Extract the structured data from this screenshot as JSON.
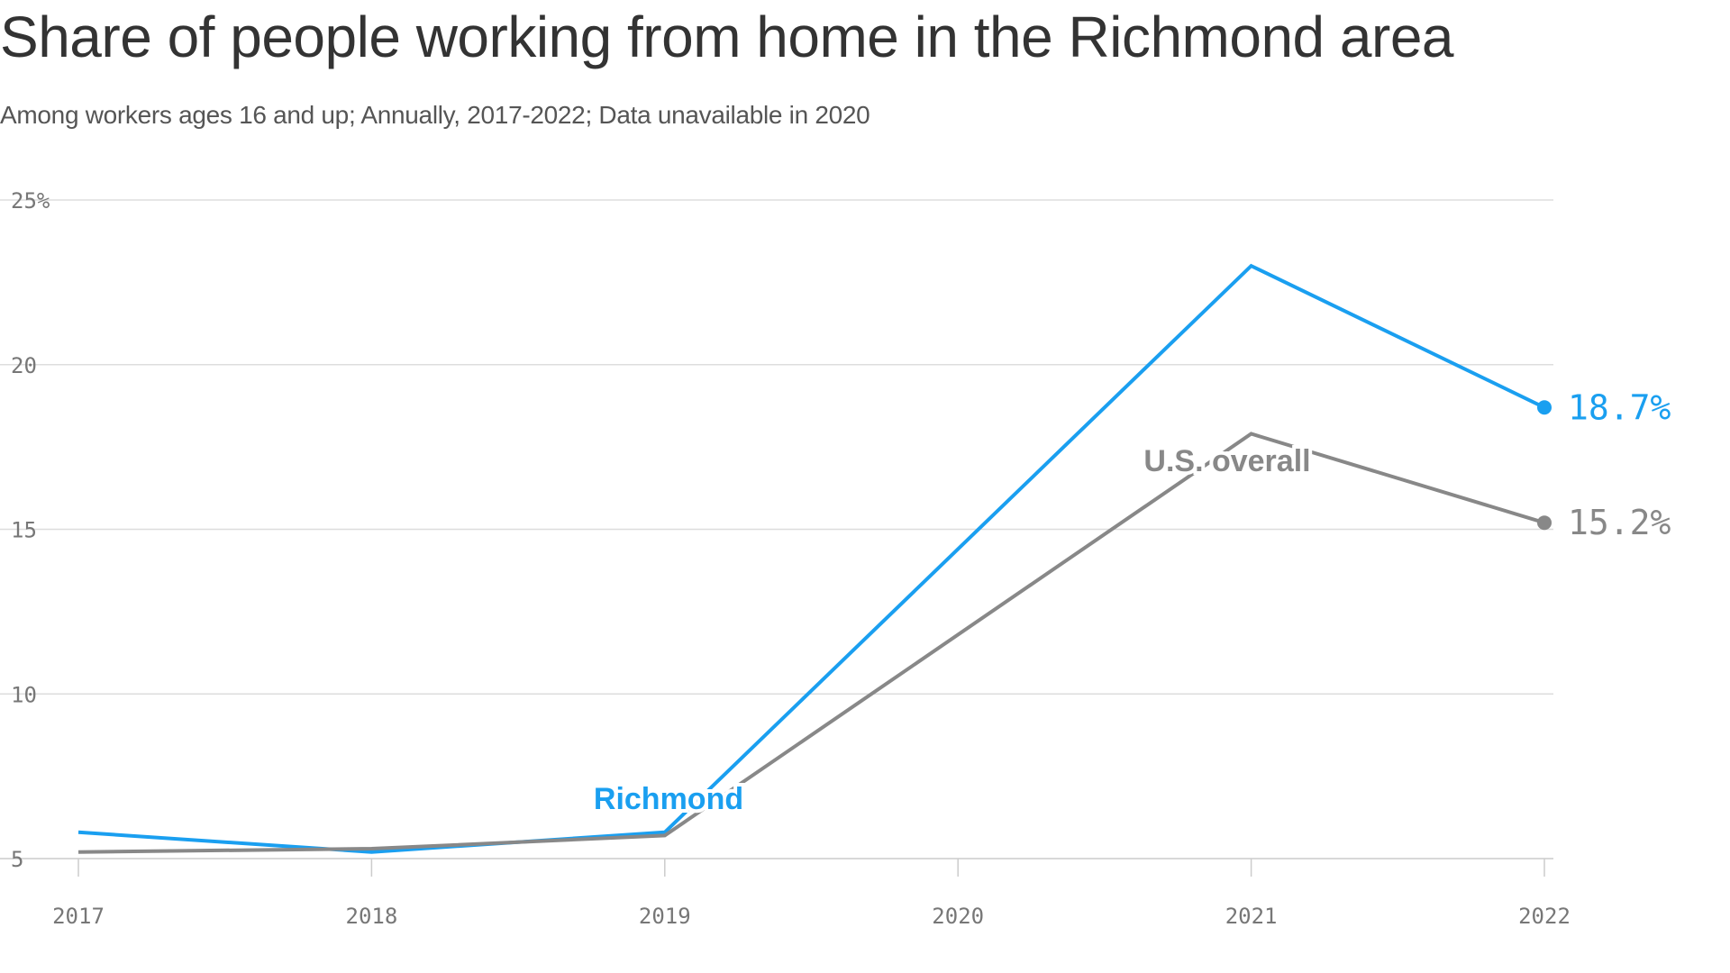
{
  "header": {
    "title": "Share of people working from home in the Richmond area",
    "subtitle": "Among workers ages 16 and up; Annually, 2017-2022; Data unavailable in 2020"
  },
  "colors": {
    "richmond": "#1a9ff0",
    "us": "#888888",
    "grid": "#dddddd",
    "axis": "#cccccc"
  },
  "chart_data": {
    "type": "line",
    "title": "Share of people working from home in the Richmond area",
    "subtitle": "Among workers ages 16 and up; Annually, 2017-2022; Data unavailable in 2020",
    "x": [
      2017,
      2018,
      2019,
      2021,
      2022
    ],
    "x_ticks": [
      "2017",
      "2018",
      "2019",
      "2020",
      "2021",
      "2022"
    ],
    "y_ticks": [
      "25%",
      "20",
      "15",
      "10",
      "5"
    ],
    "y_tick_values": [
      25,
      20,
      15,
      10,
      5
    ],
    "ylim": [
      5,
      25
    ],
    "grid": true,
    "series": [
      {
        "name": "Richmond",
        "values": [
          5.8,
          5.2,
          5.8,
          23.0,
          18.7
        ],
        "end_label": "18.7%"
      },
      {
        "name": "U.S. overall",
        "values": [
          5.2,
          5.3,
          5.7,
          17.9,
          15.2
        ],
        "end_label": "15.2%"
      }
    ]
  }
}
